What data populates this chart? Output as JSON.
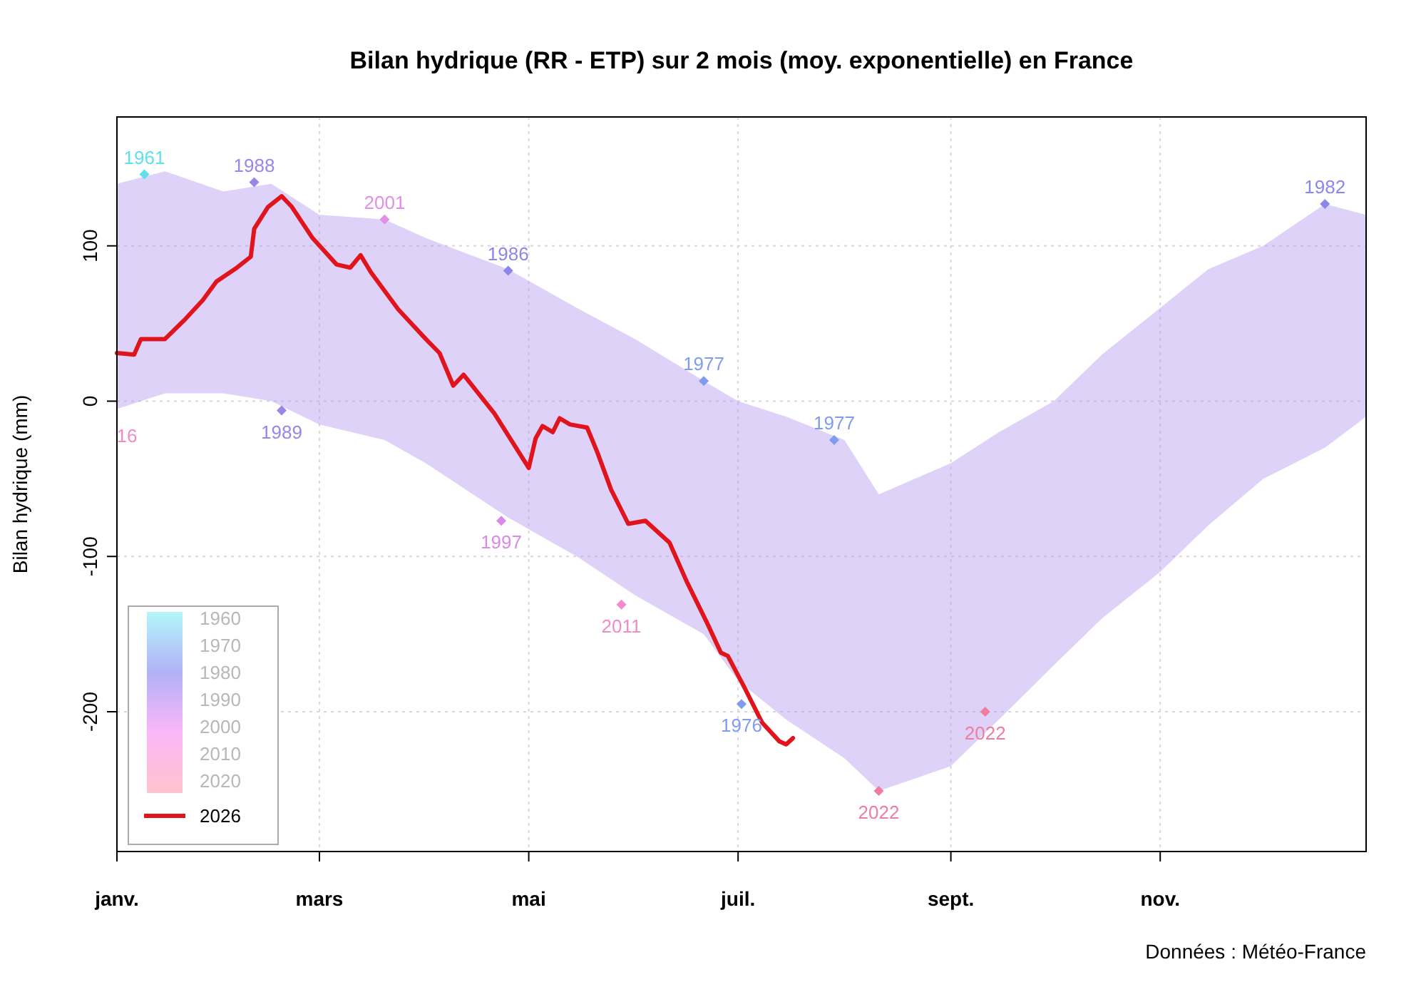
{
  "chart_data": {
    "type": "line",
    "title": "Bilan hydrique (RR - ETP) sur 2 mois (moy. exponentielle) en France",
    "ylabel": "Bilan hydrique (mm)",
    "xlim": [
      "--01-01",
      "--12-31"
    ],
    "ylim": [
      -290,
      183
    ],
    "xticks": [
      {
        "value": "--01-01",
        "label": "janv."
      },
      {
        "value": "--03-01",
        "label": "mars"
      },
      {
        "value": "--05-01",
        "label": "mai"
      },
      {
        "value": "--07-01",
        "label": "juil."
      },
      {
        "value": "--09-01",
        "label": "sept."
      },
      {
        "value": "--11-01",
        "label": "nov."
      }
    ],
    "yticks": [
      -200,
      -100,
      0,
      100
    ],
    "grid": true,
    "legend": "bottom left",
    "series": [
      {
        "type": "area",
        "color": "#b89cf0",
        "x": [
          "--01-01",
          "--01-15",
          "--02-01",
          "--02-15",
          "--03-01",
          "--03-20",
          "--04-01",
          "--04-25",
          "--05-15",
          "--06-01",
          "--06-21",
          "--07-01",
          "--07-15",
          "--08-01",
          "--08-11",
          "--09-01",
          "--09-15",
          "--10-01",
          "--10-15",
          "--11-01",
          "--11-15",
          "--12-01",
          "--12-19",
          "--12-31"
        ],
        "values": [
          null,
          null,
          null,
          null,
          null,
          null,
          null,
          null,
          null,
          null,
          null,
          null,
          null,
          null,
          null,
          null,
          null,
          null,
          null,
          null,
          null,
          null,
          null,
          null
        ],
        "upper": [
          140,
          148,
          135,
          140,
          120,
          117,
          105,
          85,
          60,
          40,
          13,
          0,
          -10,
          -25,
          -60,
          -40,
          -20,
          0,
          30,
          60,
          85,
          100,
          127,
          120
        ],
        "lower": [
          -5,
          5,
          5,
          0,
          -15,
          -25,
          -40,
          -75,
          -100,
          -125,
          -150,
          -180,
          -205,
          -230,
          -251,
          -235,
          -205,
          -170,
          -140,
          -110,
          -80,
          -50,
          -30,
          -10
        ]
      },
      {
        "type": "scatter",
        "marker": "diamond",
        "x": [
          "--01-09",
          "--02-10",
          "--03-20",
          "--04-25",
          "--02-18",
          "--04-23",
          "--05-28",
          "--06-21",
          "--07-29",
          "--07-02",
          "--08-11",
          "--09-11",
          "--12-19"
        ],
        "values": [
          146,
          141,
          117,
          84,
          -6,
          -77,
          -131,
          13,
          -25,
          -195,
          -251,
          -200,
          127
        ],
        "colors": [
          "#5fe0ea",
          "#9a86e8",
          "#e090e6",
          "#8c86e8",
          "#9a86e8",
          "#d88ae6",
          "#f08cc8",
          "#7f9cf0",
          "#7f9cf0",
          "#7f9cf0",
          "#f07ca0",
          "#f07ca0",
          "#8c86e8"
        ]
      },
      {
        "name": "2026",
        "color": "#e0141c",
        "x": [
          "--01-01",
          "--01-06",
          "--01-08",
          "--01-15",
          "--01-21",
          "--01-26",
          "--01-30",
          "--02-05",
          "--02-09",
          "--02-10",
          "--02-14",
          "--02-18",
          "--02-21",
          "--02-27",
          "--03-06",
          "--03-10",
          "--03-13",
          "--03-16",
          "--03-24",
          "--04-01",
          "--04-05",
          "--04-09",
          "--04-12",
          "--04-21",
          "--04-29",
          "--05-01",
          "--05-03",
          "--05-05",
          "--05-08",
          "--05-10",
          "--05-13",
          "--05-18",
          "--05-21",
          "--05-25",
          "--05-30",
          "--06-04",
          "--06-11",
          "--06-16",
          "--06-22",
          "--06-26",
          "--06-28",
          "--07-03",
          "--07-08",
          "--07-13",
          "--07-15",
          "--07-17"
        ],
        "values": [
          31,
          30,
          40,
          40,
          53,
          65,
          77,
          86,
          93,
          111,
          125,
          132,
          125,
          105,
          88,
          86,
          94,
          83,
          59,
          40,
          31,
          10,
          17,
          -8,
          -36,
          -43,
          -24,
          -16,
          -20,
          -11,
          -15,
          -17,
          -33,
          -57,
          -79,
          -77,
          -91,
          -116,
          -143,
          -162,
          -164,
          -185,
          -207,
          -219,
          -221,
          -217
        ]
      }
    ],
    "annotations": [
      "1961",
      "1988",
      "2001",
      "1986",
      "1989",
      "1997",
      "2011",
      "1977",
      "1977",
      "1976",
      "2022",
      "2022",
      "1982",
      "16",
      "1960",
      "1970",
      "1980",
      "1990",
      "2000",
      "2010",
      "2020",
      "Données : Météo-France"
    ]
  }
}
